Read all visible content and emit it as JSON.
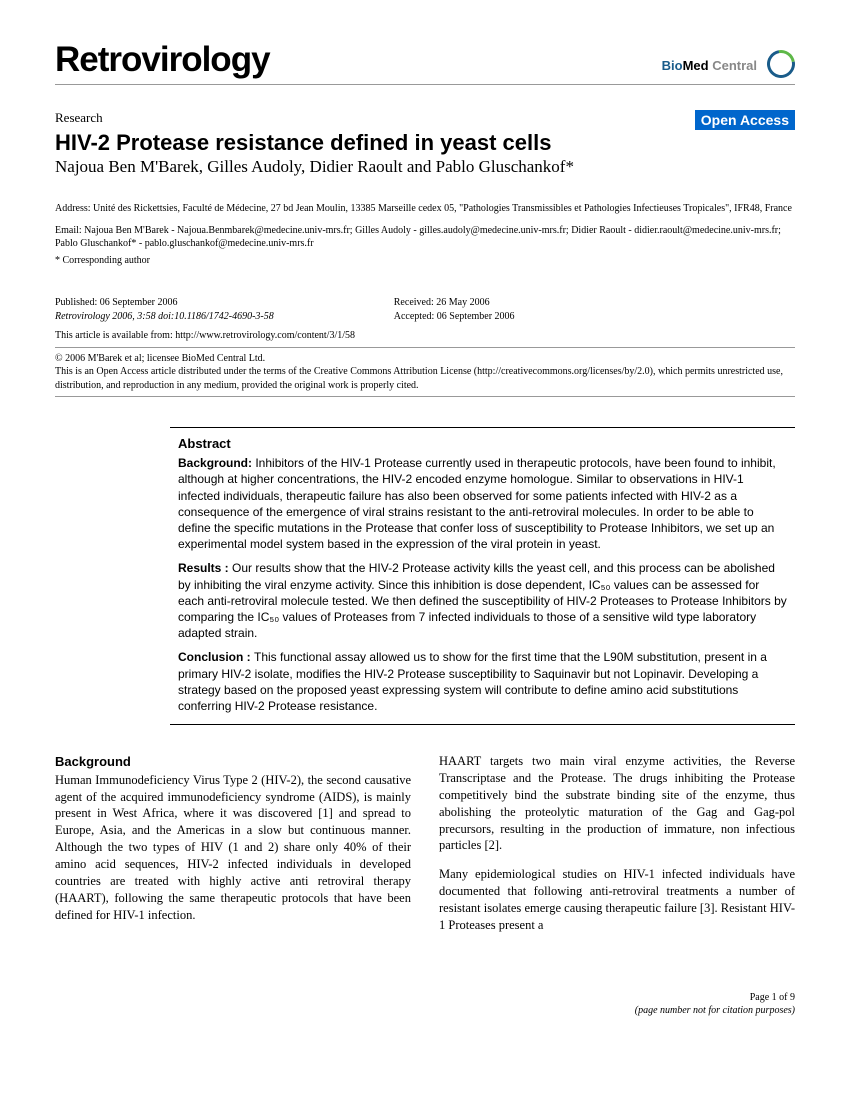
{
  "header": {
    "journal": "Retrovirology",
    "publisher_logo": {
      "bio": "Bio",
      "med": "Med",
      "central": " Central"
    }
  },
  "article": {
    "type": "Research",
    "open_access_label": "Open Access",
    "title": "HIV-2 Protease resistance defined in yeast cells",
    "authors": "Najoua Ben M'Barek, Gilles Audoly, Didier Raoult and Pablo Gluschankof*"
  },
  "address": "Address: Unité des Rickettsies, Faculté de Médecine, 27 bd Jean Moulin, 13385 Marseille cedex 05, \"Pathologies Transmissibles et Pathologies Infectieuses Tropicales\", IFR48, France",
  "email": "Email: Najoua Ben M'Barek - Najoua.Benmbarek@medecine.univ-mrs.fr; Gilles Audoly - gilles.audoly@medecine.univ-mrs.fr; Didier Raoult - didier.raoult@medecine.univ-mrs.fr; Pablo Gluschankof* - pablo.gluschankof@medecine.univ-mrs.fr",
  "corresponding": "* Corresponding author",
  "pub": {
    "published": "Published: 06 September 2006",
    "citation": "Retrovirology 2006, 3:58   doi:10.1186/1742-4690-3-58",
    "received": "Received: 26 May 2006",
    "accepted": "Accepted: 06 September 2006",
    "available_from": "This article is available from: http://www.retrovirology.com/content/3/1/58"
  },
  "license": {
    "copyright": "© 2006 M'Barek et al; licensee BioMed Central Ltd.",
    "text": "This is an Open Access article distributed under the terms of the Creative Commons Attribution License (http://creativecommons.org/licenses/by/2.0), which permits unrestricted use, distribution, and reproduction in any medium, provided the original work is properly cited."
  },
  "abstract": {
    "heading": "Abstract",
    "background_label": "Background: ",
    "background": "Inhibitors of the HIV-1 Protease currently used in therapeutic protocols, have been found to inhibit, although at higher concentrations, the HIV-2 encoded enzyme homologue. Similar to observations in HIV-1 infected individuals, therapeutic failure has also been observed for some patients infected with HIV-2 as a consequence of the emergence of viral strains resistant to the anti-retroviral molecules. In order to be able to define the specific mutations in the Protease that confer loss of susceptibility to Protease Inhibitors, we set up an experimental model system based in the expression of the viral protein in yeast.",
    "results_label": "Results : ",
    "results": "Our results show that the HIV-2 Protease activity kills the yeast cell, and this process can be abolished by inhibiting the viral enzyme activity. Since this inhibition is dose dependent, IC₅₀ values can be assessed for each anti-retroviral molecule tested. We then defined the susceptibility of HIV-2 Proteases to Protease Inhibitors by comparing the IC₅₀ values of Proteases from 7 infected individuals to those of a sensitive wild type laboratory adapted strain.",
    "conclusion_label": "Conclusion : ",
    "conclusion": "This functional assay allowed us to show for the first time that the L90M substitution, present in a primary HIV-2 isolate, modifies the HIV-2 Protease susceptibility to Saquinavir but not Lopinavir. Developing a strategy based on the proposed yeast expressing system will contribute to define amino acid substitutions conferring HIV-2 Protease resistance."
  },
  "body": {
    "background_heading": "Background",
    "col1_p1": "Human Immunodeficiency Virus Type 2 (HIV-2), the second causative agent of the acquired immunodeficiency syndrome (AIDS), is mainly present in West Africa, where it was discovered [1] and spread to Europe, Asia, and the Americas in a slow but continuous manner. Although the two types of HIV (1 and 2) share only 40% of their amino acid sequences, HIV-2 infected individuals in developed countries are treated with highly active anti retroviral therapy (HAART), following the same therapeutic protocols that have been defined for HIV-1 infection.",
    "col2_p1": "HAART targets two main viral enzyme activities, the Reverse Transcriptase and the Protease. The drugs inhibiting the Protease competitively bind the substrate binding site of the enzyme, thus abolishing the proteolytic maturation of the Gag and Gag-pol precursors, resulting in the production of immature, non infectious particles [2].",
    "col2_p2": "Many epidemiological studies on HIV-1 infected individuals have documented that following anti-retroviral treatments a number of resistant isolates emerge causing therapeutic failure [3]. Resistant HIV-1 Proteases present a"
  },
  "footer": {
    "page": "Page 1 of 9",
    "note": "(page number not for citation purposes)"
  }
}
